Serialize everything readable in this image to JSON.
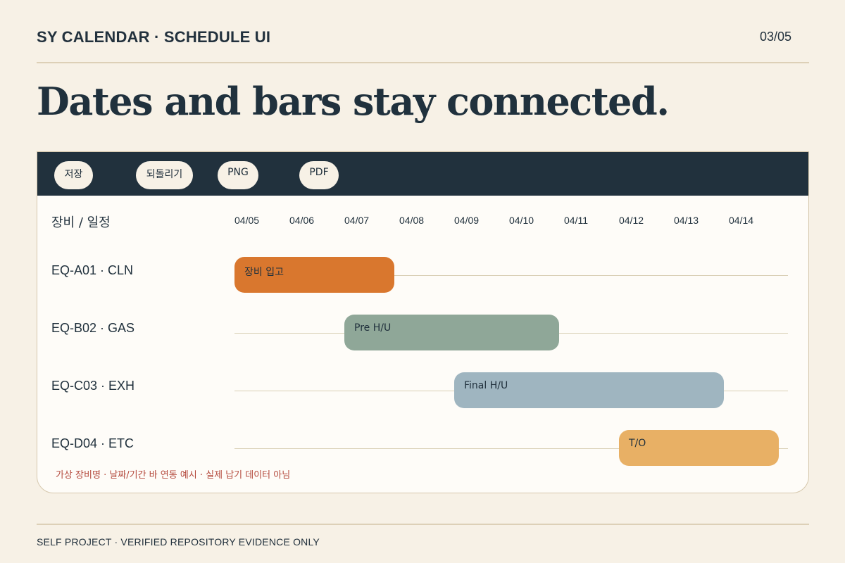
{
  "header": {
    "title": "SY CALENDAR · SCHEDULE UI",
    "page": "03/05"
  },
  "headline": "Dates and bars stay connected.",
  "toolbar": {
    "buttons": [
      {
        "label": "저장"
      },
      {
        "label": "되돌리기"
      },
      {
        "label": "PNG"
      },
      {
        "label": "PDF"
      }
    ]
  },
  "schedule": {
    "column_header": "장비 / 일정",
    "dates": [
      "04/05",
      "04/06",
      "04/07",
      "04/08",
      "04/09",
      "04/10",
      "04/11",
      "04/12",
      "04/13",
      "04/14"
    ],
    "rows": [
      {
        "label": "EQ-A01 · CLN",
        "bar": {
          "text": "장비 입고",
          "start": "04/05",
          "end": "04/07",
          "color": "#d9772e"
        }
      },
      {
        "label": "EQ-B02 · GAS",
        "bar": {
          "text": "Pre H/U",
          "start": "04/07",
          "end": "04/10",
          "color": "#8fa798"
        }
      },
      {
        "label": "EQ-C03 · EXH",
        "bar": {
          "text": "Final H/U",
          "start": "04/09",
          "end": "04/13",
          "color": "#9fb5c0"
        }
      },
      {
        "label": "EQ-D04 · ETC",
        "bar": {
          "text": "T/O",
          "start": "04/12",
          "end": "04/14",
          "color": "#e8b065"
        }
      }
    ],
    "footnote": "가상 장비명 · 날짜/기간 바 연동 예시 · 실제 납기 데이터 아님"
  },
  "footer": "SELF PROJECT · VERIFIED REPOSITORY EVIDENCE ONLY"
}
